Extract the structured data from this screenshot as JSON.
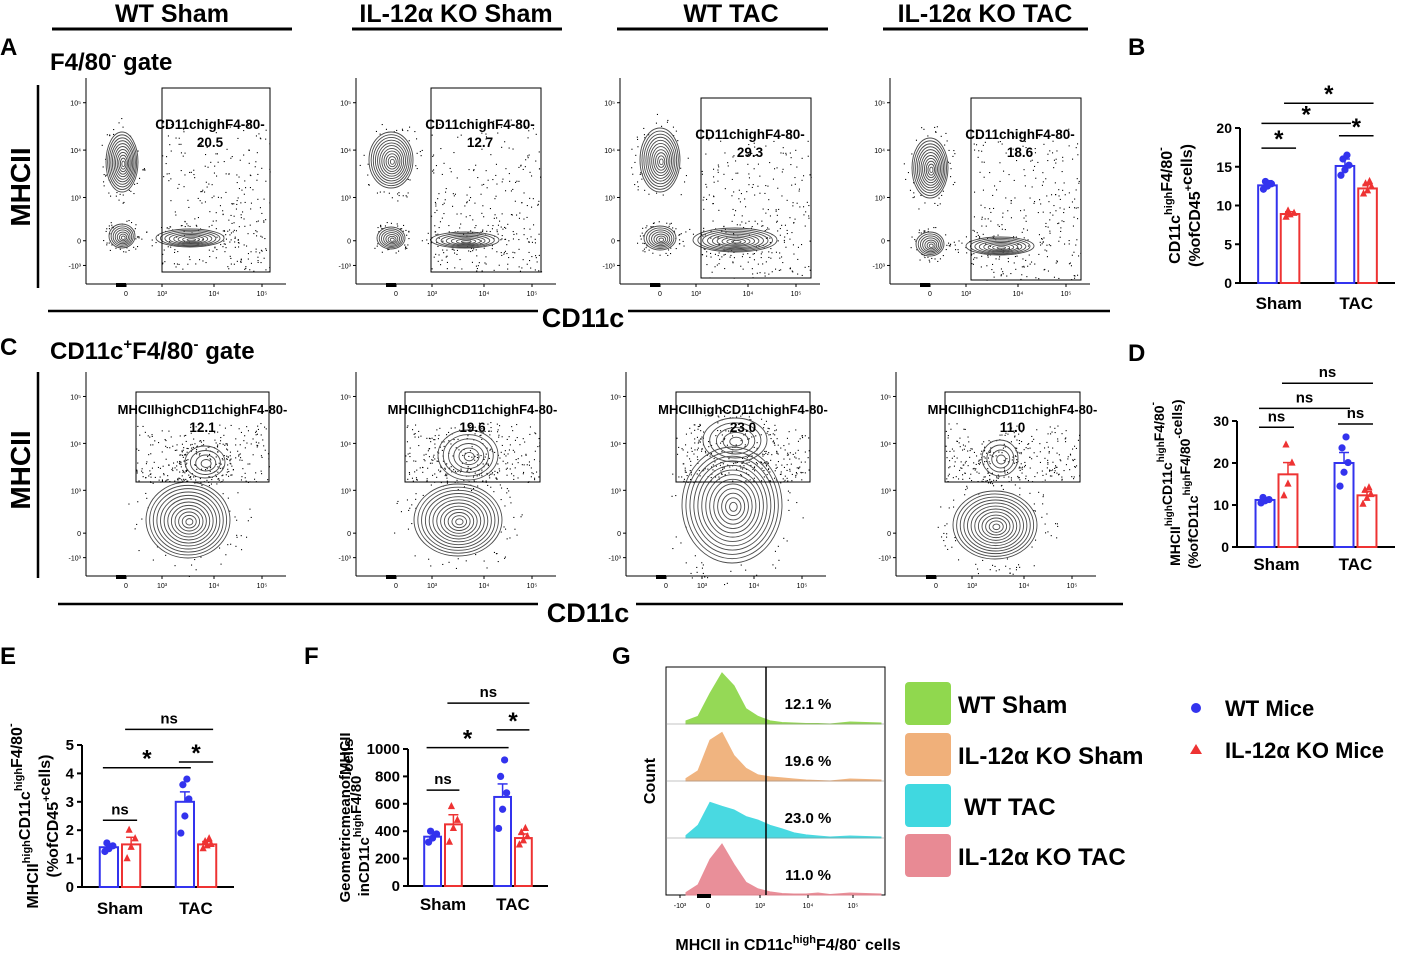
{
  "colors": {
    "wt": "#3333ee",
    "ko": "#ee3333",
    "ink": "#000000",
    "contour": "#555555"
  },
  "headers": [
    "WT Sham",
    "IL-12α KO Sham",
    "WT TAC",
    "IL-12α KO TAC"
  ],
  "panels": {
    "A": "A",
    "B": "B",
    "C": "C",
    "D": "D",
    "E": "E",
    "F": "F",
    "G": "G"
  },
  "flow_top": {
    "gate_label": "F4/80",
    "gate_sup": "-",
    "gate_suffix": " gate",
    "ylabel": "MHCII",
    "xlabel": "CD11c",
    "gate_name": "CD11chighF4-80-",
    "values": [
      "20.5",
      "12.7",
      "29.3",
      "18.6"
    ]
  },
  "flow_bottom": {
    "gate_p1": "CD11c",
    "gate_sup1": "+",
    "gate_p2": "F4/80",
    "gate_sup2": "-",
    "gate_suffix": " gate",
    "ylabel": "MHCII",
    "xlabel": "CD11c",
    "gate_name": "MHCIIhighCD11chighF4-80-",
    "values": [
      "12.1",
      "19.6",
      "23.0",
      "11.0"
    ]
  },
  "flow_ticks": {
    "y": [
      "10⁵",
      "10⁴",
      "10³",
      "0",
      "-10³"
    ],
    "x": [
      "0",
      "10³",
      "10⁴",
      "10⁵"
    ]
  },
  "chart_data": [
    {
      "id": "B",
      "type": "bar",
      "ylabel_lines": [
        "CD11c^high F4/80^-",
        "(% of CD45^+ cells)"
      ],
      "categories": [
        "Sham",
        "TAC"
      ],
      "series": [
        {
          "name": "WT Mice",
          "values": [
            12.6,
            15.1
          ],
          "sem": [
            0.6,
            0.9
          ],
          "points": [
            [
              12.1,
              12.5,
              12.8,
              13.1
            ],
            [
              13.9,
              14.6,
              15.2,
              16.0,
              16.5
            ]
          ]
        },
        {
          "name": "IL-12α KO Mice",
          "values": [
            8.9,
            12.2
          ],
          "sem": [
            0.3,
            0.5
          ],
          "points": [
            [
              8.5,
              8.8,
              9.0,
              9.3
            ],
            [
              11.5,
              11.9,
              12.4,
              12.8,
              13.1
            ]
          ]
        }
      ],
      "ylim": [
        0,
        20
      ],
      "yticks": [
        0,
        5,
        10,
        15,
        20
      ],
      "annotations": [
        {
          "text": "*",
          "from": [
            0,
            0
          ],
          "to": [
            0,
            1
          ],
          "level": 17.4
        },
        {
          "text": "*",
          "from": [
            1,
            0
          ],
          "to": [
            1,
            1
          ],
          "level": 19.0
        },
        {
          "text": "*",
          "from": [
            0,
            0
          ],
          "to": [
            1,
            0
          ],
          "level": 20.6
        },
        {
          "text": "*",
          "from": [
            0,
            1
          ],
          "to": [
            1,
            1
          ],
          "level": 23.2
        }
      ]
    },
    {
      "id": "D",
      "type": "bar",
      "ylabel_lines": [
        "MHCII^high CD11c^high F4/80^-",
        "(% of CD11c^high F4/80^- cells)"
      ],
      "categories": [
        "Sham",
        "TAC"
      ],
      "series": [
        {
          "name": "WT Mice",
          "values": [
            11.2,
            20.0
          ],
          "sem": [
            0.5,
            2.5
          ],
          "points": [
            [
              10.5,
              11.0,
              11.3,
              11.8
            ],
            [
              14.5,
              17.8,
              20.1,
              23.6,
              26.2
            ]
          ]
        },
        {
          "name": "IL-12α KO Mice",
          "values": [
            17.3,
            12.3
          ],
          "sem": [
            2.8,
            0.9
          ],
          "points": [
            [
              12.2,
              15.0,
              20.0,
              24.3
            ],
            [
              10.2,
              11.6,
              12.5,
              13.5,
              14.1
            ]
          ]
        }
      ],
      "ylim": [
        0,
        30
      ],
      "yticks": [
        0,
        10,
        20,
        30
      ],
      "annotations": [
        {
          "text": "ns",
          "from": [
            0,
            0
          ],
          "to": [
            0,
            1
          ],
          "level": 28.5
        },
        {
          "text": "ns",
          "from": [
            1,
            0
          ],
          "to": [
            1,
            1
          ],
          "level": 29.3
        },
        {
          "text": "ns",
          "from": [
            0,
            0
          ],
          "to": [
            1,
            0
          ],
          "level": 33.0
        },
        {
          "text": "ns",
          "from": [
            0,
            1
          ],
          "to": [
            1,
            1
          ],
          "level": 39.0
        }
      ]
    },
    {
      "id": "E",
      "type": "bar",
      "ylabel_lines": [
        "MHCII^high CD11c^high F4/80^-",
        "(% of CD45^+ cells)"
      ],
      "categories": [
        "Sham",
        "TAC"
      ],
      "series": [
        {
          "name": "WT Mice",
          "values": [
            1.4,
            3.0
          ],
          "sem": [
            0.1,
            0.35
          ],
          "points": [
            [
              1.25,
              1.35,
              1.45,
              1.55
            ],
            [
              1.9,
              2.5,
              3.1,
              3.6,
              3.8
            ]
          ]
        },
        {
          "name": "IL-12α KO Mice",
          "values": [
            1.5,
            1.5
          ],
          "sem": [
            0.25,
            0.1
          ],
          "points": [
            [
              1.0,
              1.4,
              1.7,
              2.0
            ],
            [
              1.35,
              1.45,
              1.5,
              1.6,
              1.7
            ]
          ]
        }
      ],
      "ylim": [
        0,
        5
      ],
      "yticks": [
        0,
        1,
        2,
        3,
        4,
        5
      ],
      "annotations": [
        {
          "text": "ns",
          "from": [
            0,
            0
          ],
          "to": [
            0,
            1
          ],
          "level": 2.35
        },
        {
          "text": "*",
          "from": [
            1,
            0
          ],
          "to": [
            1,
            1
          ],
          "level": 4.4
        },
        {
          "text": "*",
          "from": [
            0,
            0
          ],
          "to": [
            1,
            0
          ],
          "level": 4.2
        },
        {
          "text": "ns",
          "from": [
            0,
            1
          ],
          "to": [
            1,
            1
          ],
          "level": 5.55
        }
      ]
    },
    {
      "id": "F",
      "type": "bar",
      "ylabel_lines": [
        "Geometric mean of MHCII",
        "in CD11c^high F4/80^- cells"
      ],
      "categories": [
        "Sham",
        "TAC"
      ],
      "series": [
        {
          "name": "WT Mice",
          "values": [
            360,
            650
          ],
          "sem": [
            30,
            95
          ],
          "points": [
            [
              320,
              350,
              380,
              400
            ],
            [
              420,
              560,
              680,
              800,
              920
            ]
          ]
        },
        {
          "name": "IL-12α KO Mice",
          "values": [
            450,
            350
          ],
          "sem": [
            70,
            30
          ],
          "points": [
            [
              320,
              420,
              480,
              580
            ],
            [
              300,
              330,
              360,
              390,
              420
            ]
          ]
        }
      ],
      "ylim": [
        0,
        1000
      ],
      "yticks": [
        0,
        200,
        400,
        600,
        800,
        1000
      ],
      "annotations": [
        {
          "text": "ns",
          "from": [
            0,
            0
          ],
          "to": [
            0,
            1
          ],
          "level": 700
        },
        {
          "text": "*",
          "from": [
            1,
            0
          ],
          "to": [
            1,
            1
          ],
          "level": 1140
        },
        {
          "text": "*",
          "from": [
            0,
            0
          ],
          "to": [
            1,
            0
          ],
          "level": 1010
        },
        {
          "text": "ns",
          "from": [
            0,
            1
          ],
          "to": [
            1,
            1
          ],
          "level": 1335
        }
      ]
    }
  ],
  "histogram": {
    "ylabel": "Count",
    "xlabel_parts": [
      "MHCII in CD11c",
      "high",
      "F4/80",
      "-",
      " cells"
    ],
    "xticks": [
      "-10³",
      "0",
      "10³",
      "10⁴",
      "10⁵"
    ],
    "tracks": [
      {
        "name": "WT Sham",
        "pct": "12.1 %",
        "fill": "#90d84e"
      },
      {
        "name": "IL-12α KO Sham",
        "pct": "19.6 %",
        "fill": "#f0b07a"
      },
      {
        "name": "WT TAC",
        "pct": "23.0 %",
        "fill": "#40d8e0"
      },
      {
        "name": "IL-12α KO TAC",
        "pct": "11.0 %",
        "fill": "#e88a94"
      }
    ]
  },
  "legend": {
    "groups": [
      {
        "label": "WT Sham",
        "fill": "#90d84e"
      },
      {
        "label": "IL-12α KO Sham",
        "fill": "#f0b07a"
      },
      {
        "label": "WT TAC",
        "fill": "#40d8e0"
      },
      {
        "label": "IL-12α KO TAC",
        "fill": "#e88a94"
      }
    ],
    "mice": [
      {
        "label": "WT Mice",
        "marker": "circle"
      },
      {
        "label": "IL-12α KO Mice",
        "marker": "triangle"
      }
    ]
  }
}
